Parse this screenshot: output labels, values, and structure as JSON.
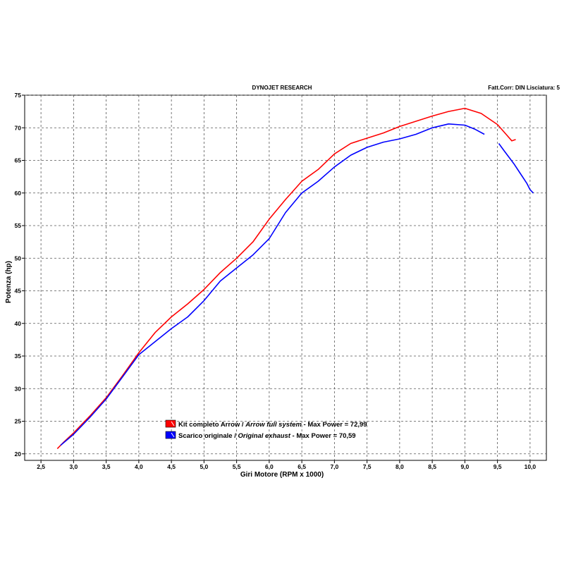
{
  "header": {
    "title": "DYNOJET RESEARCH",
    "settings": "Fatt.Corr: DIN  Lisciatura: 5"
  },
  "chart_data": {
    "type": "line",
    "title": "DYNOJET RESEARCH",
    "xlabel": "Giri Motore (RPM x 1000)",
    "ylabel": "Potenza (hp)",
    "xlim": [
      2.25,
      10.25
    ],
    "ylim": [
      19,
      75
    ],
    "x_ticks": [
      2.5,
      3.0,
      3.5,
      4.0,
      4.5,
      5.0,
      5.5,
      6.0,
      6.5,
      7.0,
      7.5,
      8.0,
      8.5,
      9.0,
      9.5,
      10.0
    ],
    "x_tick_labels": [
      "2,5",
      "3,0",
      "3,5",
      "4,0",
      "4,5",
      "5,0",
      "5,5",
      "6,0",
      "6,5",
      "7,0",
      "7,5",
      "8,0",
      "8,5",
      "9,0",
      "9,5",
      "10,0"
    ],
    "y_ticks": [
      20,
      25,
      30,
      35,
      40,
      45,
      50,
      55,
      60,
      65,
      70,
      75
    ],
    "grid": true,
    "legend_position": "bottom-center",
    "series": [
      {
        "name": "Kit completo Arrow / Arrow full system - Max Power = 72,99",
        "legend_main": "Kit completo Arrow / ",
        "legend_italic": "Arrow full system",
        "legend_tail": " - Max Power = 72,99",
        "color": "#ff0000",
        "points": [
          [
            2.75,
            20.8
          ],
          [
            2.85,
            21.8
          ],
          [
            3.0,
            23.2
          ],
          [
            3.25,
            25.8
          ],
          [
            3.5,
            28.6
          ],
          [
            3.75,
            32.0
          ],
          [
            4.0,
            35.5
          ],
          [
            4.25,
            38.6
          ],
          [
            4.5,
            41.0
          ],
          [
            4.75,
            43.0
          ],
          [
            5.0,
            45.2
          ],
          [
            5.25,
            47.8
          ],
          [
            5.5,
            50.0
          ],
          [
            5.75,
            52.5
          ],
          [
            6.0,
            56.0
          ],
          [
            6.25,
            59.0
          ],
          [
            6.5,
            61.8
          ],
          [
            6.75,
            63.6
          ],
          [
            7.0,
            66.0
          ],
          [
            7.25,
            67.6
          ],
          [
            7.5,
            68.4
          ],
          [
            7.75,
            69.2
          ],
          [
            8.0,
            70.2
          ],
          [
            8.25,
            71.0
          ],
          [
            8.5,
            71.8
          ],
          [
            8.75,
            72.5
          ],
          [
            9.0,
            72.99
          ],
          [
            9.25,
            72.2
          ],
          [
            9.5,
            70.5
          ],
          [
            9.65,
            68.8
          ],
          [
            9.72,
            68.0
          ],
          [
            9.78,
            68.2
          ]
        ]
      },
      {
        "name": "Scarico originale / Original exhaust - Max Power = 70,59",
        "legend_main": "Scarico originale / ",
        "legend_italic": "Original exhaust",
        "legend_tail": " - Max Power = 70,59",
        "color": "#0000ff",
        "points": [
          [
            2.8,
            21.3
          ],
          [
            3.0,
            23.0
          ],
          [
            3.25,
            25.6
          ],
          [
            3.5,
            28.4
          ],
          [
            3.75,
            31.8
          ],
          [
            4.0,
            35.2
          ],
          [
            4.25,
            37.2
          ],
          [
            4.5,
            39.2
          ],
          [
            4.75,
            41.0
          ],
          [
            5.0,
            43.5
          ],
          [
            5.25,
            46.5
          ],
          [
            5.5,
            48.5
          ],
          [
            5.75,
            50.5
          ],
          [
            6.0,
            53.0
          ],
          [
            6.25,
            57.0
          ],
          [
            6.5,
            60.0
          ],
          [
            6.75,
            61.8
          ],
          [
            7.0,
            64.0
          ],
          [
            7.25,
            65.8
          ],
          [
            7.5,
            67.0
          ],
          [
            7.75,
            67.8
          ],
          [
            8.0,
            68.3
          ],
          [
            8.25,
            69.0
          ],
          [
            8.5,
            70.0
          ],
          [
            8.75,
            70.59
          ],
          [
            9.0,
            70.4
          ],
          [
            9.15,
            69.8
          ],
          [
            9.3,
            69.0
          ]
        ],
        "points_tail": [
          [
            9.52,
            67.6
          ],
          [
            9.6,
            66.5
          ],
          [
            9.75,
            64.5
          ],
          [
            9.85,
            63.0
          ],
          [
            9.95,
            61.5
          ],
          [
            10.0,
            60.5
          ],
          [
            10.05,
            60.0
          ]
        ]
      }
    ]
  }
}
